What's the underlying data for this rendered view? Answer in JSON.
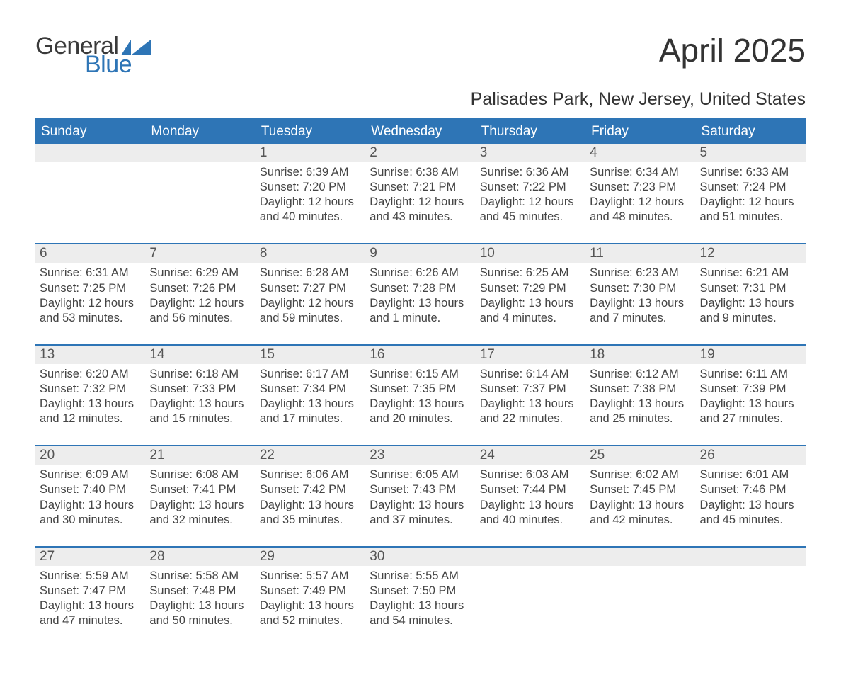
{
  "logo": {
    "text1": "General",
    "text2": "Blue",
    "flag_color": "#2e75b6"
  },
  "title": "April 2025",
  "subtitle": "Palisades Park, New Jersey, United States",
  "colors": {
    "header_bg": "#2e75b6",
    "header_text": "#ffffff",
    "daynum_bg": "#ededed",
    "daynum_text": "#555555",
    "body_text": "#444444",
    "title_text": "#333333",
    "border": "#2e75b6",
    "page_bg": "#ffffff"
  },
  "typography": {
    "title_fontsize": 46,
    "subtitle_fontsize": 25,
    "header_fontsize": 19,
    "daynum_fontsize": 19,
    "body_fontsize": 16.5,
    "font_family": "Arial"
  },
  "weekdays": [
    "Sunday",
    "Monday",
    "Tuesday",
    "Wednesday",
    "Thursday",
    "Friday",
    "Saturday"
  ],
  "weeks": [
    [
      {
        "num": "",
        "lines": [
          "",
          "",
          "",
          ""
        ]
      },
      {
        "num": "",
        "lines": [
          "",
          "",
          "",
          ""
        ]
      },
      {
        "num": "1",
        "lines": [
          "Sunrise: 6:39 AM",
          "Sunset: 7:20 PM",
          "Daylight: 12 hours",
          "and 40 minutes."
        ]
      },
      {
        "num": "2",
        "lines": [
          "Sunrise: 6:38 AM",
          "Sunset: 7:21 PM",
          "Daylight: 12 hours",
          "and 43 minutes."
        ]
      },
      {
        "num": "3",
        "lines": [
          "Sunrise: 6:36 AM",
          "Sunset: 7:22 PM",
          "Daylight: 12 hours",
          "and 45 minutes."
        ]
      },
      {
        "num": "4",
        "lines": [
          "Sunrise: 6:34 AM",
          "Sunset: 7:23 PM",
          "Daylight: 12 hours",
          "and 48 minutes."
        ]
      },
      {
        "num": "5",
        "lines": [
          "Sunrise: 6:33 AM",
          "Sunset: 7:24 PM",
          "Daylight: 12 hours",
          "and 51 minutes."
        ]
      }
    ],
    [
      {
        "num": "6",
        "lines": [
          "Sunrise: 6:31 AM",
          "Sunset: 7:25 PM",
          "Daylight: 12 hours",
          "and 53 minutes."
        ]
      },
      {
        "num": "7",
        "lines": [
          "Sunrise: 6:29 AM",
          "Sunset: 7:26 PM",
          "Daylight: 12 hours",
          "and 56 minutes."
        ]
      },
      {
        "num": "8",
        "lines": [
          "Sunrise: 6:28 AM",
          "Sunset: 7:27 PM",
          "Daylight: 12 hours",
          "and 59 minutes."
        ]
      },
      {
        "num": "9",
        "lines": [
          "Sunrise: 6:26 AM",
          "Sunset: 7:28 PM",
          "Daylight: 13 hours",
          "and 1 minute."
        ]
      },
      {
        "num": "10",
        "lines": [
          "Sunrise: 6:25 AM",
          "Sunset: 7:29 PM",
          "Daylight: 13 hours",
          "and 4 minutes."
        ]
      },
      {
        "num": "11",
        "lines": [
          "Sunrise: 6:23 AM",
          "Sunset: 7:30 PM",
          "Daylight: 13 hours",
          "and 7 minutes."
        ]
      },
      {
        "num": "12",
        "lines": [
          "Sunrise: 6:21 AM",
          "Sunset: 7:31 PM",
          "Daylight: 13 hours",
          "and 9 minutes."
        ]
      }
    ],
    [
      {
        "num": "13",
        "lines": [
          "Sunrise: 6:20 AM",
          "Sunset: 7:32 PM",
          "Daylight: 13 hours",
          "and 12 minutes."
        ]
      },
      {
        "num": "14",
        "lines": [
          "Sunrise: 6:18 AM",
          "Sunset: 7:33 PM",
          "Daylight: 13 hours",
          "and 15 minutes."
        ]
      },
      {
        "num": "15",
        "lines": [
          "Sunrise: 6:17 AM",
          "Sunset: 7:34 PM",
          "Daylight: 13 hours",
          "and 17 minutes."
        ]
      },
      {
        "num": "16",
        "lines": [
          "Sunrise: 6:15 AM",
          "Sunset: 7:35 PM",
          "Daylight: 13 hours",
          "and 20 minutes."
        ]
      },
      {
        "num": "17",
        "lines": [
          "Sunrise: 6:14 AM",
          "Sunset: 7:37 PM",
          "Daylight: 13 hours",
          "and 22 minutes."
        ]
      },
      {
        "num": "18",
        "lines": [
          "Sunrise: 6:12 AM",
          "Sunset: 7:38 PM",
          "Daylight: 13 hours",
          "and 25 minutes."
        ]
      },
      {
        "num": "19",
        "lines": [
          "Sunrise: 6:11 AM",
          "Sunset: 7:39 PM",
          "Daylight: 13 hours",
          "and 27 minutes."
        ]
      }
    ],
    [
      {
        "num": "20",
        "lines": [
          "Sunrise: 6:09 AM",
          "Sunset: 7:40 PM",
          "Daylight: 13 hours",
          "and 30 minutes."
        ]
      },
      {
        "num": "21",
        "lines": [
          "Sunrise: 6:08 AM",
          "Sunset: 7:41 PM",
          "Daylight: 13 hours",
          "and 32 minutes."
        ]
      },
      {
        "num": "22",
        "lines": [
          "Sunrise: 6:06 AM",
          "Sunset: 7:42 PM",
          "Daylight: 13 hours",
          "and 35 minutes."
        ]
      },
      {
        "num": "23",
        "lines": [
          "Sunrise: 6:05 AM",
          "Sunset: 7:43 PM",
          "Daylight: 13 hours",
          "and 37 minutes."
        ]
      },
      {
        "num": "24",
        "lines": [
          "Sunrise: 6:03 AM",
          "Sunset: 7:44 PM",
          "Daylight: 13 hours",
          "and 40 minutes."
        ]
      },
      {
        "num": "25",
        "lines": [
          "Sunrise: 6:02 AM",
          "Sunset: 7:45 PM",
          "Daylight: 13 hours",
          "and 42 minutes."
        ]
      },
      {
        "num": "26",
        "lines": [
          "Sunrise: 6:01 AM",
          "Sunset: 7:46 PM",
          "Daylight: 13 hours",
          "and 45 minutes."
        ]
      }
    ],
    [
      {
        "num": "27",
        "lines": [
          "Sunrise: 5:59 AM",
          "Sunset: 7:47 PM",
          "Daylight: 13 hours",
          "and 47 minutes."
        ]
      },
      {
        "num": "28",
        "lines": [
          "Sunrise: 5:58 AM",
          "Sunset: 7:48 PM",
          "Daylight: 13 hours",
          "and 50 minutes."
        ]
      },
      {
        "num": "29",
        "lines": [
          "Sunrise: 5:57 AM",
          "Sunset: 7:49 PM",
          "Daylight: 13 hours",
          "and 52 minutes."
        ]
      },
      {
        "num": "30",
        "lines": [
          "Sunrise: 5:55 AM",
          "Sunset: 7:50 PM",
          "Daylight: 13 hours",
          "and 54 minutes."
        ]
      },
      {
        "num": "",
        "lines": [
          "",
          "",
          "",
          ""
        ]
      },
      {
        "num": "",
        "lines": [
          "",
          "",
          "",
          ""
        ]
      },
      {
        "num": "",
        "lines": [
          "",
          "",
          "",
          ""
        ]
      }
    ]
  ]
}
